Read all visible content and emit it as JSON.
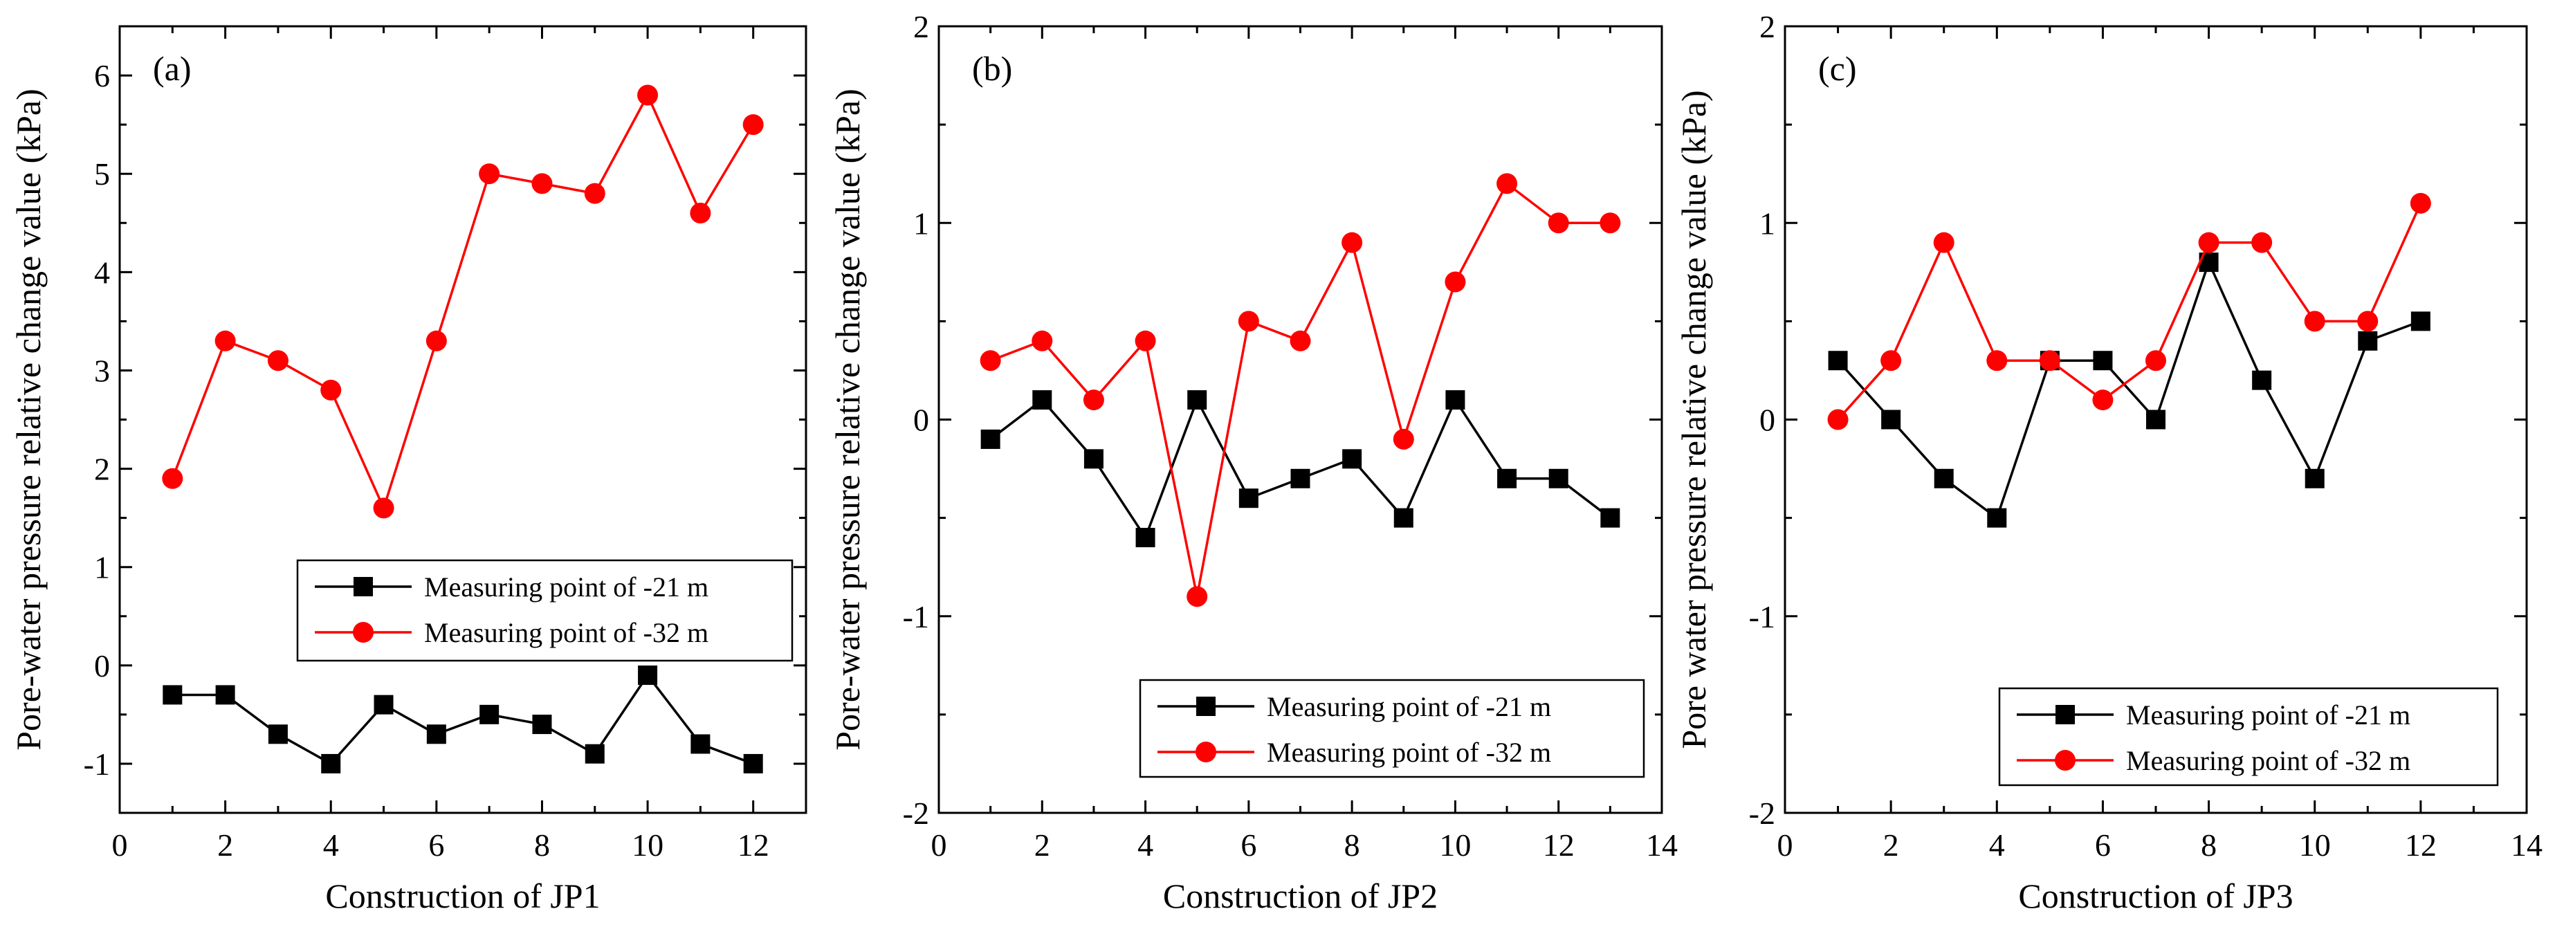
{
  "colors": {
    "series_21": "#000000",
    "series_32": "#ff0000",
    "axis": "#000000",
    "background": "#ffffff"
  },
  "chart_data": [
    {
      "type": "line",
      "panel_label": "(a)",
      "xlabel": "Construction of JP1",
      "ylabel": "Pore-water pressure relative change value (kPa)",
      "xlim": [
        0,
        13
      ],
      "ylim": [
        -1.5,
        6.5
      ],
      "xticks": [
        0,
        2,
        4,
        6,
        8,
        10,
        12
      ],
      "yticks": [
        -1,
        0,
        1,
        2,
        3,
        4,
        5,
        6
      ],
      "legend_position": "lower-right",
      "series": [
        {
          "name": "Measuring point of -21 m",
          "marker": "square",
          "color": "#000000",
          "x": [
            1,
            2,
            3,
            4,
            5,
            6,
            7,
            8,
            9,
            10,
            11,
            12
          ],
          "y": [
            -0.3,
            -0.3,
            -0.7,
            -1.0,
            -0.4,
            -0.7,
            -0.5,
            -0.6,
            -0.9,
            -0.1,
            -0.8,
            -1.0
          ]
        },
        {
          "name": "Measuring point of -32 m",
          "marker": "circle",
          "color": "#ff0000",
          "x": [
            1,
            2,
            3,
            4,
            5,
            6,
            7,
            8,
            9,
            10,
            11,
            12
          ],
          "y": [
            1.9,
            3.3,
            3.1,
            2.8,
            1.6,
            3.3,
            5.0,
            4.9,
            4.8,
            5.8,
            4.6,
            5.5
          ]
        }
      ]
    },
    {
      "type": "line",
      "panel_label": "(b)",
      "xlabel": "Construction of JP2",
      "ylabel": "Pore-water pressure relative change value (kPa)",
      "xlim": [
        0,
        14
      ],
      "ylim": [
        -2,
        2
      ],
      "xticks": [
        0,
        2,
        4,
        6,
        8,
        10,
        12,
        14
      ],
      "yticks": [
        -2,
        -1,
        0,
        1,
        2
      ],
      "legend_position": "lower-right",
      "series": [
        {
          "name": "Measuring point of -21 m",
          "marker": "square",
          "color": "#000000",
          "x": [
            1,
            2,
            3,
            4,
            5,
            6,
            7,
            8,
            9,
            10,
            11,
            12,
            13
          ],
          "y": [
            -0.1,
            0.1,
            -0.2,
            -0.6,
            0.1,
            -0.4,
            -0.3,
            -0.2,
            -0.5,
            0.1,
            -0.3,
            -0.3,
            -0.5
          ]
        },
        {
          "name": "Measuring point of -32 m",
          "marker": "circle",
          "color": "#ff0000",
          "x": [
            1,
            2,
            3,
            4,
            5,
            6,
            7,
            8,
            9,
            10,
            11,
            12,
            13
          ],
          "y": [
            0.3,
            0.4,
            0.1,
            0.4,
            -0.9,
            0.5,
            0.4,
            0.9,
            -0.1,
            0.7,
            1.2,
            1.0,
            1.0
          ]
        }
      ]
    },
    {
      "type": "line",
      "panel_label": "(c)",
      "xlabel": "Construction of JP3",
      "ylabel": "Pore water pressure relative change value (kPa)",
      "xlim": [
        0,
        14
      ],
      "ylim": [
        -2,
        2
      ],
      "xticks": [
        0,
        2,
        4,
        6,
        8,
        10,
        12,
        14
      ],
      "yticks": [
        -2,
        -1,
        0,
        1,
        2
      ],
      "legend_position": "lower-right",
      "series": [
        {
          "name": "Measuring point of -21 m",
          "marker": "square",
          "color": "#000000",
          "x": [
            1,
            2,
            3,
            4,
            5,
            6,
            7,
            8,
            9,
            10,
            11,
            12
          ],
          "y": [
            0.3,
            0.0,
            -0.3,
            -0.5,
            0.3,
            0.3,
            0.0,
            0.8,
            0.2,
            -0.3,
            0.4,
            0.5
          ]
        },
        {
          "name": "Measuring point of -32 m",
          "marker": "circle",
          "color": "#ff0000",
          "x": [
            1,
            2,
            3,
            4,
            5,
            6,
            7,
            8,
            9,
            10,
            11,
            12
          ],
          "y": [
            0.0,
            0.3,
            0.9,
            0.3,
            0.3,
            0.1,
            0.3,
            0.9,
            0.9,
            0.5,
            0.5,
            1.1
          ]
        }
      ]
    }
  ]
}
